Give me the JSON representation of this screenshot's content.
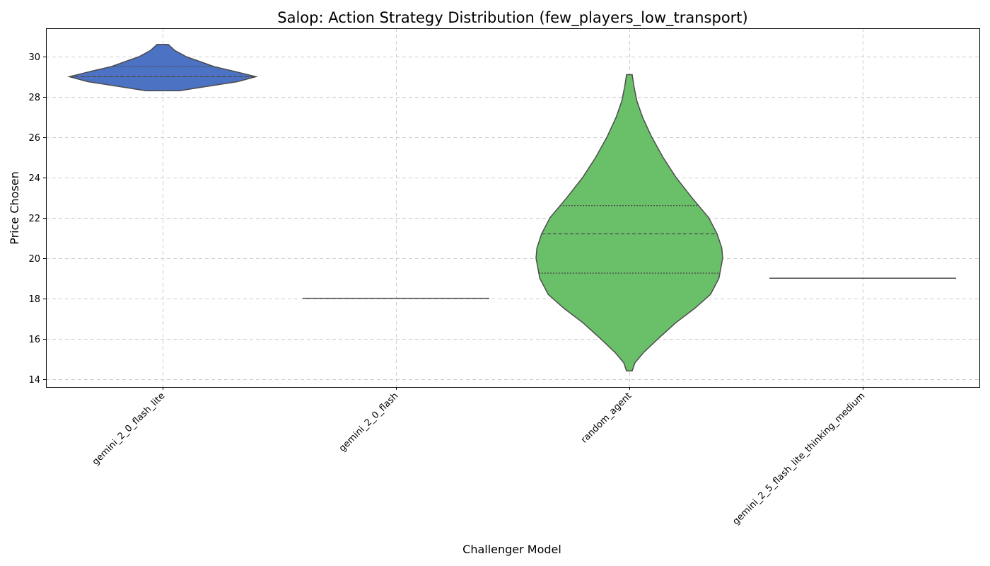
{
  "chart_data": {
    "type": "violin",
    "title": "Salop: Action Strategy Distribution (few_players_low_transport)",
    "xlabel": "Challenger Model",
    "ylabel": "Price Chosen",
    "ylim": [
      13.6,
      31.4
    ],
    "yticks": [
      14,
      16,
      18,
      20,
      22,
      24,
      26,
      28,
      30
    ],
    "grid": true,
    "categories": [
      "gemini_2_0_flash_lite",
      "gemini_2_0_flash",
      "random_agent",
      "gemini_2_5_flash_lite_thinking_medium"
    ],
    "violins": [
      {
        "name": "gemini_2_0_flash_lite",
        "color": "#4c72c4",
        "min": 28.3,
        "max": 30.6,
        "median": 29.0,
        "q1": 29.0,
        "q3": 29.5,
        "profile": [
          [
            28.3,
            0.18
          ],
          [
            28.5,
            0.45
          ],
          [
            28.75,
            0.8
          ],
          [
            29.0,
            1.0
          ],
          [
            29.25,
            0.78
          ],
          [
            29.5,
            0.55
          ],
          [
            29.75,
            0.4
          ],
          [
            30.0,
            0.25
          ],
          [
            30.3,
            0.13
          ],
          [
            30.6,
            0.06
          ]
        ]
      },
      {
        "name": "gemini_2_0_flash",
        "color": "#4c72c4",
        "min": 18.0,
        "max": 18.0,
        "median": 18.0,
        "q1": 18.0,
        "q3": 18.0,
        "profile": []
      },
      {
        "name": "random_agent",
        "color": "#6abf69",
        "min": 14.4,
        "max": 29.1,
        "median": 21.2,
        "q1": 19.25,
        "q3": 22.6,
        "profile": [
          [
            14.4,
            0.03
          ],
          [
            14.8,
            0.06
          ],
          [
            15.3,
            0.15
          ],
          [
            16.0,
            0.31
          ],
          [
            16.8,
            0.5
          ],
          [
            17.5,
            0.7
          ],
          [
            18.2,
            0.87
          ],
          [
            19.0,
            0.96
          ],
          [
            20.0,
            1.0
          ],
          [
            20.5,
            0.99
          ],
          [
            21.2,
            0.94
          ],
          [
            22.0,
            0.85
          ],
          [
            23.0,
            0.67
          ],
          [
            24.0,
            0.5
          ],
          [
            25.0,
            0.36
          ],
          [
            26.0,
            0.24
          ],
          [
            27.0,
            0.14
          ],
          [
            27.8,
            0.08
          ],
          [
            28.5,
            0.05
          ],
          [
            29.1,
            0.03
          ]
        ]
      },
      {
        "name": "gemini_2_5_flash_lite_thinking_medium",
        "color": "#4c72c4",
        "min": 19.0,
        "max": 19.0,
        "median": 19.0,
        "q1": 19.0,
        "q3": 19.0,
        "profile": []
      }
    ]
  }
}
